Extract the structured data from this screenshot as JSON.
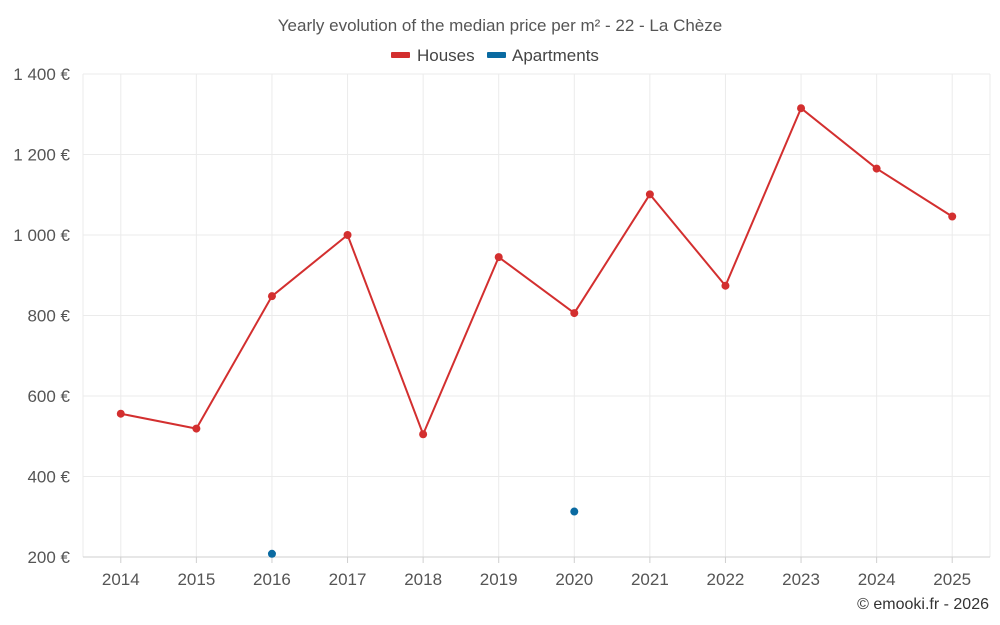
{
  "chart_data": {
    "type": "line",
    "title": "Yearly evolution of the median price per m² - 22 - La Chèze",
    "categories": [
      "2014",
      "2015",
      "2016",
      "2017",
      "2018",
      "2019",
      "2020",
      "2021",
      "2022",
      "2023",
      "2024",
      "2025"
    ],
    "series": [
      {
        "name": "Houses",
        "color": "#d32f2f",
        "values": [
          556,
          519,
          848,
          1000,
          505,
          945,
          806,
          1101,
          874,
          1315,
          1165,
          1046
        ]
      },
      {
        "name": "Apartments",
        "color": "#0a6aa1",
        "values": [
          null,
          null,
          208,
          null,
          null,
          null,
          313,
          null,
          null,
          null,
          null,
          null
        ]
      }
    ],
    "ylim": [
      200,
      1400
    ],
    "yticks": [
      200,
      400,
      600,
      800,
      1000,
      1200,
      1400
    ],
    "ytick_labels": [
      "200 €",
      "400 €",
      "600 €",
      "800 €",
      "1 000 €",
      "1 200 €",
      "1 400 €"
    ],
    "xlabel": "",
    "ylabel": "",
    "legend_position": "top-center",
    "grid": true
  },
  "credit": "© emooki.fr - 2026"
}
